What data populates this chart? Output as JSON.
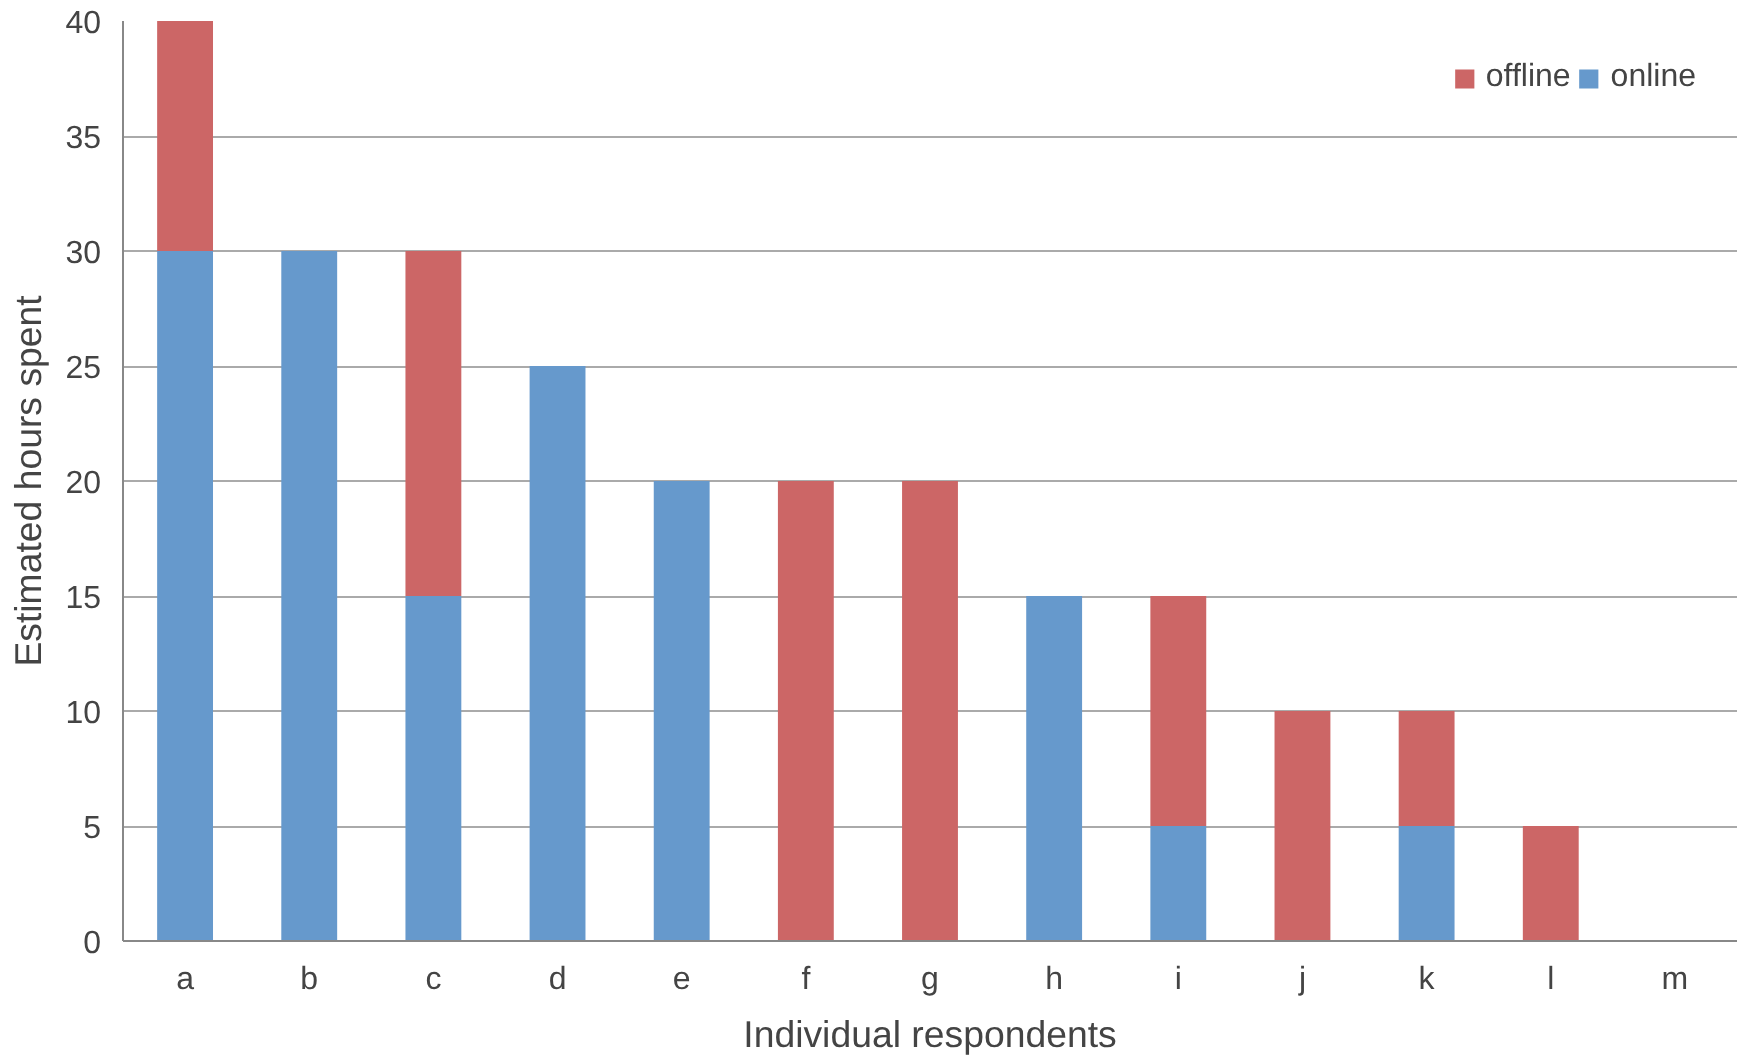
{
  "chart_data": {
    "type": "bar",
    "stacked": true,
    "xlabel": "Individual respondents",
    "ylabel": "Estimated hours spent",
    "categories": [
      "a",
      "b",
      "c",
      "d",
      "e",
      "f",
      "g",
      "h",
      "i",
      "j",
      "k",
      "l",
      "m"
    ],
    "series": [
      {
        "name": "online",
        "color": "#6699cc",
        "values": [
          30,
          30,
          15,
          25,
          20,
          0,
          0,
          15,
          5,
          0,
          5,
          0,
          0
        ]
      },
      {
        "name": "offline",
        "color": "#cc6666",
        "values": [
          10,
          0,
          15,
          0,
          0,
          20,
          20,
          0,
          10,
          10,
          5,
          5,
          0
        ]
      }
    ],
    "ylim": [
      0,
      40
    ],
    "yticks": [
      0,
      5,
      10,
      15,
      20,
      25,
      30,
      35,
      40
    ],
    "grid": "y",
    "legend": "top right"
  }
}
